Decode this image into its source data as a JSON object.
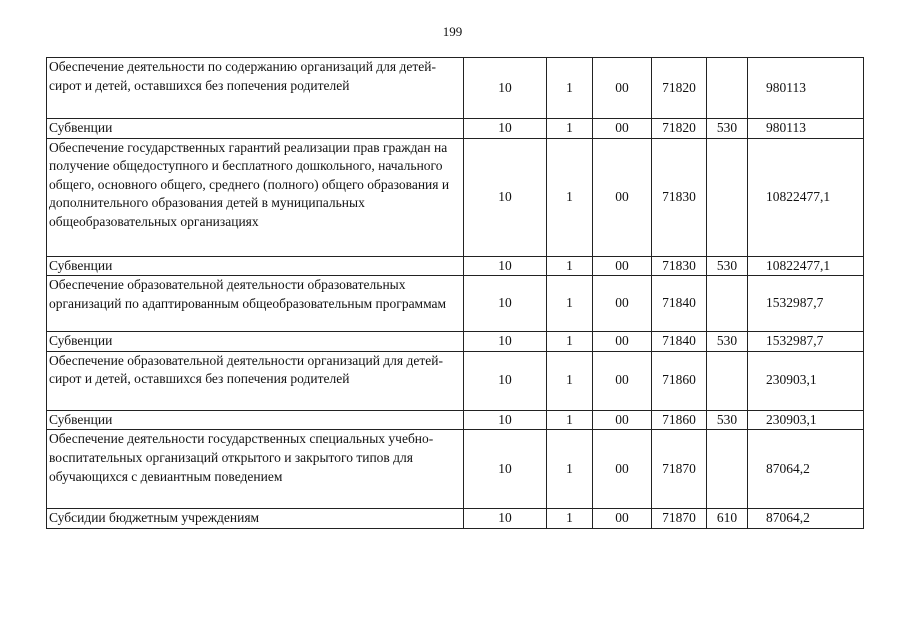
{
  "page_number": "199",
  "rows": [
    {
      "name": "Обеспечение деятельности по содержанию организаций для детей-сирот и детей, оставшихся без попечения родителей",
      "rz": "10",
      "pr": "1",
      "prog": "00",
      "csr": "71820",
      "vr": "",
      "amount": "980113"
    },
    {
      "name": "Субвенции",
      "rz": "10",
      "pr": "1",
      "prog": "00",
      "csr": "71820",
      "vr": "530",
      "amount": "980113"
    },
    {
      "name": "Обеспечение государственных гарантий реализации прав граждан на получение общедоступного и бесплатного дошкольного, начального общего, основного общего, среднего (полного) общего образования и дополнительного образования детей в муниципальных общеобразовательных организациях",
      "rz": "10",
      "pr": "1",
      "prog": "00",
      "csr": "71830",
      "vr": "",
      "amount": "10822477,1"
    },
    {
      "name": "Субвенции",
      "rz": "10",
      "pr": "1",
      "prog": "00",
      "csr": "71830",
      "vr": "530",
      "amount": "10822477,1"
    },
    {
      "name": "Обеспечение образовательной деятельности образовательных организаций по адаптированным общеобразовательным программам",
      "rz": "10",
      "pr": "1",
      "prog": "00",
      "csr": "71840",
      "vr": "",
      "amount": "1532987,7"
    },
    {
      "name": "Субвенции",
      "rz": "10",
      "pr": "1",
      "prog": "00",
      "csr": "71840",
      "vr": "530",
      "amount": "1532987,7"
    },
    {
      "name": "Обеспечение образовательной деятельности организаций для детей-сирот и детей, оставшихся без попечения родителей",
      "rz": "10",
      "pr": "1",
      "prog": "00",
      "csr": "71860",
      "vr": "",
      "amount": "230903,1"
    },
    {
      "name": "Субвенции",
      "rz": "10",
      "pr": "1",
      "prog": "00",
      "csr": "71860",
      "vr": "530",
      "amount": "230903,1"
    },
    {
      "name": "Обеспечение деятельности государственных специальных учебно-воспитательных организаций открытого и закрытого типов для обучающихся с девиантным поведением",
      "rz": "10",
      "pr": "1",
      "prog": "00",
      "csr": "71870",
      "vr": "",
      "amount": "87064,2"
    },
    {
      "name": "Субсидии бюджетным учреждениям",
      "rz": "10",
      "pr": "1",
      "prog": "00",
      "csr": "71870",
      "vr": "610",
      "amount": "87064,2"
    }
  ]
}
